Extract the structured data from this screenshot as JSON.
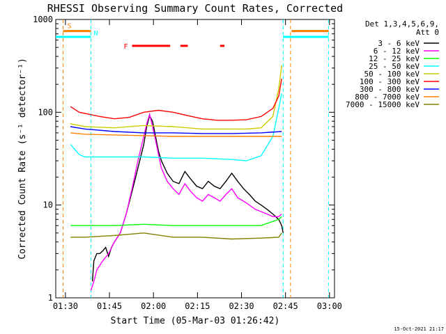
{
  "chart_data": {
    "type": "line",
    "title": "RHESSI Observing Summary Count Rates, Corrected",
    "xlabel": "Start Time (05-Mar-03 01:26:42)",
    "ylabel": "Corrected Count Rate (s⁻¹ detector⁻¹)",
    "x_unit": "minutes from 01:26:42",
    "xlim": [
      0,
      95
    ],
    "ylim": [
      1,
      1000
    ],
    "y_scale": "log",
    "x_ticks": [
      {
        "x": 3.3,
        "label": "01:30"
      },
      {
        "x": 18.3,
        "label": "01:45"
      },
      {
        "x": 33.3,
        "label": "02:00"
      },
      {
        "x": 48.3,
        "label": "02:15"
      },
      {
        "x": 63.3,
        "label": "02:30"
      },
      {
        "x": 78.3,
        "label": "02:45"
      },
      {
        "x": 93.3,
        "label": "03:00"
      }
    ],
    "y_ticks": [
      {
        "y": 1,
        "label": "1"
      },
      {
        "y": 10,
        "label": "10"
      },
      {
        "y": 100,
        "label": "100"
      },
      {
        "y": 1000,
        "label": "1000"
      }
    ],
    "legend_header": [
      "Det 1,3,4,5,6,9,",
      "Att 0"
    ],
    "legend_position": "right",
    "footer_timestamp": "15-Oct-2021 21:17",
    "series": [
      {
        "name": "3 - 6 keV",
        "color": "#000000",
        "x": [
          12.5,
          13,
          14,
          15,
          16,
          17,
          18,
          19,
          20,
          22,
          24,
          26,
          28,
          30,
          31,
          32,
          33,
          34,
          35,
          36,
          38,
          40,
          42,
          44,
          46,
          48,
          50,
          52,
          54,
          56,
          58,
          60,
          62,
          64,
          66,
          68,
          70,
          72,
          74,
          76,
          77,
          77.5
        ],
        "y": [
          1.5,
          2.5,
          3,
          3,
          3.2,
          3.5,
          2.8,
          3.5,
          4,
          5,
          8,
          14,
          25,
          45,
          70,
          92,
          80,
          55,
          38,
          30,
          22,
          18,
          17,
          23,
          19,
          16,
          15,
          18,
          16,
          15,
          18,
          22,
          18,
          15,
          13,
          11,
          10,
          9,
          8,
          7,
          6,
          5
        ]
      },
      {
        "name": "6 - 12 keV",
        "color": "#ff00ff",
        "x": [
          12,
          13,
          14,
          16,
          18,
          20,
          22,
          24,
          26,
          28,
          30,
          31,
          32,
          33,
          34,
          35,
          36,
          38,
          40,
          42,
          44,
          46,
          48,
          50,
          52,
          54,
          56,
          58,
          60,
          62,
          64,
          66,
          68,
          70,
          72,
          74,
          76,
          77
        ],
        "y": [
          1.2,
          1.5,
          2,
          2.5,
          3,
          4,
          5,
          8,
          15,
          30,
          55,
          75,
          95,
          70,
          50,
          35,
          25,
          18,
          15,
          13,
          17,
          14,
          12,
          11,
          13,
          12,
          11,
          13,
          15,
          12,
          11,
          10,
          9,
          8.5,
          8,
          7.5,
          7.5,
          8
        ]
      },
      {
        "name": "12 - 25 keV",
        "color": "#00ff00",
        "x": [
          5,
          10,
          20,
          30,
          40,
          50,
          60,
          70,
          73,
          76,
          77
        ],
        "y": [
          6,
          6,
          6,
          6.2,
          6,
          6,
          6,
          6,
          6.5,
          7,
          7.5
        ]
      },
      {
        "name": "25 - 50 keV",
        "color": "#00ffff",
        "x": [
          5,
          8,
          10,
          20,
          30,
          40,
          50,
          60,
          65,
          70,
          74,
          76,
          77
        ],
        "y": [
          45,
          35,
          33,
          33,
          33,
          32,
          32,
          31,
          30,
          34,
          55,
          110,
          160
        ]
      },
      {
        "name": "50 - 100 keV",
        "color": "#cccc00",
        "x": [
          5,
          10,
          20,
          30,
          40,
          50,
          60,
          65,
          70,
          74,
          76,
          77
        ],
        "y": [
          75,
          70,
          68,
          72,
          70,
          66,
          66,
          66,
          68,
          90,
          180,
          320
        ]
      },
      {
        "name": "100 - 300 keV",
        "color": "#ff0000",
        "x": [
          5,
          8,
          15,
          20,
          25,
          30,
          35,
          40,
          45,
          50,
          55,
          60,
          65,
          70,
          74,
          76,
          77
        ],
        "y": [
          115,
          100,
          90,
          85,
          88,
          100,
          105,
          100,
          92,
          85,
          82,
          82,
          83,
          90,
          110,
          150,
          230
        ]
      },
      {
        "name": "300 - 800 keV",
        "color": "#0000ff",
        "x": [
          5,
          10,
          20,
          30,
          40,
          50,
          60,
          70,
          77
        ],
        "y": [
          70,
          66,
          62,
          60,
          60,
          59,
          59,
          60,
          62
        ]
      },
      {
        "name": "800 - 7000 keV",
        "color": "#ff8000",
        "x": [
          5,
          10,
          20,
          30,
          40,
          50,
          60,
          70,
          77
        ],
        "y": [
          60,
          58,
          57,
          56,
          55,
          55,
          55,
          55,
          55
        ]
      },
      {
        "name": "7000 - 15000 keV",
        "color": "#808000",
        "x": [
          5,
          10,
          20,
          30,
          40,
          50,
          60,
          70,
          76,
          77
        ],
        "y": [
          4.5,
          4.5,
          4.7,
          5,
          4.5,
          4.5,
          4.3,
          4.4,
          4.5,
          5
        ]
      }
    ],
    "annotations": {
      "saa": {
        "label": "S",
        "color": "#ff8000",
        "start": 2.5,
        "end": 12,
        "level": 750
      },
      "night": {
        "label": "N",
        "color": "#00ffff",
        "spans": [
          [
            0,
            12
          ],
          [
            77.5,
            93
          ]
        ],
        "level": 650
      },
      "flare": {
        "label": "F",
        "color": "#ff0000",
        "level": 520,
        "spans": [
          [
            26,
            39
          ],
          [
            42.5,
            45
          ],
          [
            56,
            57.5
          ]
        ]
      },
      "vlines": [
        {
          "x": 2.5,
          "color": "#ff8000"
        },
        {
          "x": 12.0,
          "color": "#00ffff"
        },
        {
          "x": 77.5,
          "color": "#00ffff"
        },
        {
          "x": 80.0,
          "color": "#ff8000"
        },
        {
          "x": 93.0,
          "color": "#00ffff"
        }
      ]
    }
  }
}
